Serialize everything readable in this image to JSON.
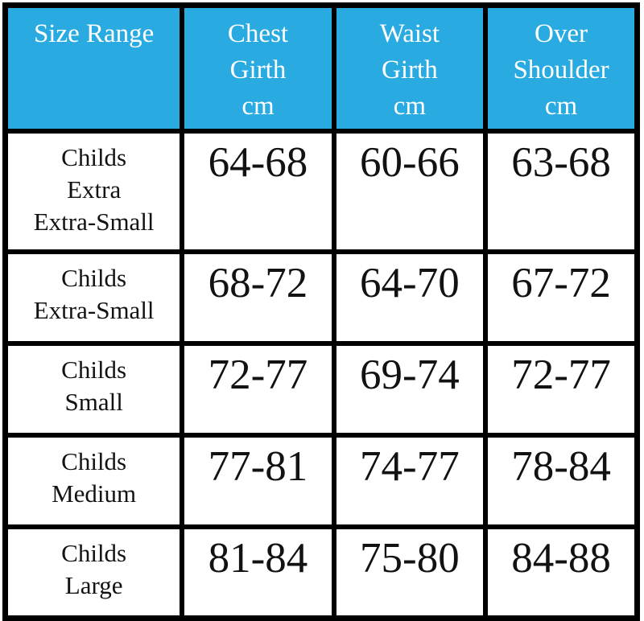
{
  "table": {
    "header": [
      "Size Range",
      "Chest\nGirth\ncm",
      "Waist\nGirth\ncm",
      "Over\nShoulder\ncm"
    ],
    "rows": [
      [
        "Childs\nExtra\nExtra-Small",
        "64-68",
        "60-66",
        "63-68"
      ],
      [
        "Childs\nExtra-Small",
        "68-72",
        "64-70",
        "67-72"
      ],
      [
        "Childs\nSmall",
        "72-77",
        "69-74",
        "72-77"
      ],
      [
        "Childs\nMedium",
        "77-81",
        "74-77",
        "78-84"
      ],
      [
        "Childs\nLarge",
        "81-84",
        "75-80",
        "84-88"
      ]
    ],
    "colors": {
      "header_background": "#29ABE2",
      "header_text": "#FFFFFF",
      "border": "#000000",
      "body_text": "#121212",
      "page_background": "#FFFFFF"
    }
  }
}
